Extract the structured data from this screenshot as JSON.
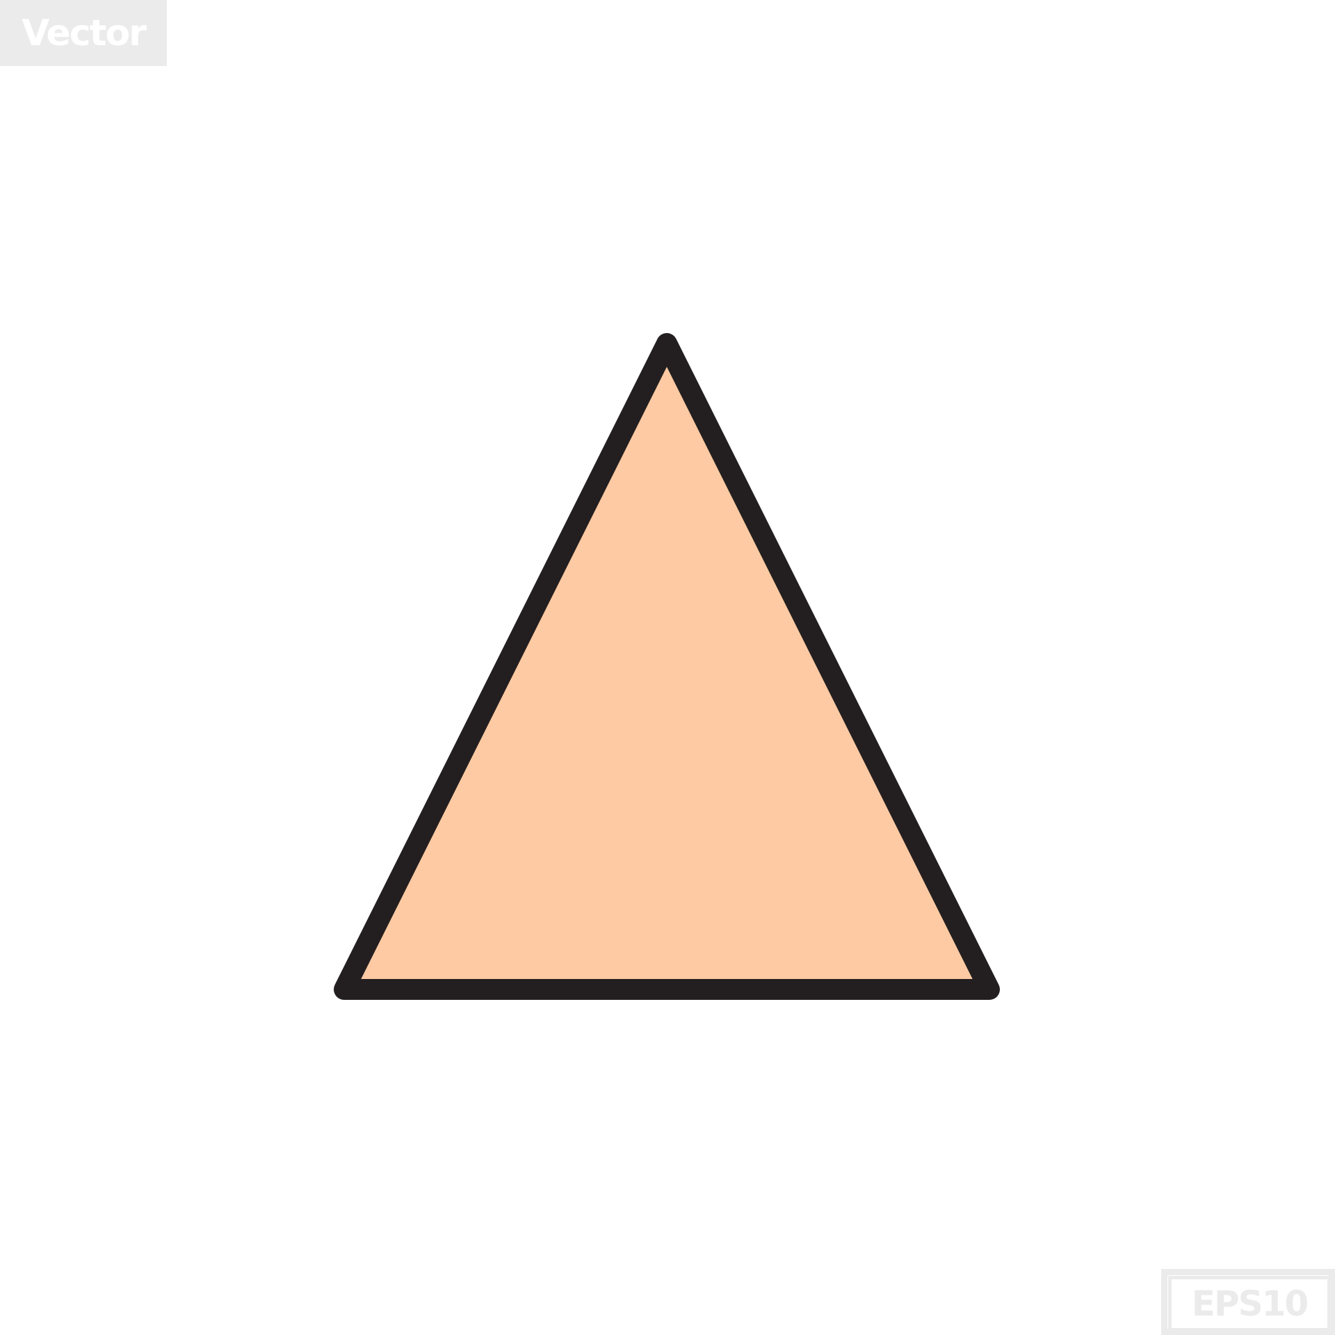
{
  "badges": {
    "top_label": "Vector",
    "bottom_label": "EPS10"
  },
  "icon": {
    "name": "triangle-icon",
    "fill_color": "#fdcaa3",
    "stroke_color": "#231f20"
  },
  "colors": {
    "background": "#ffffff",
    "badge_background": "#ebebeb",
    "badge_text": "#ffffff",
    "eps_text": "#ebebeb"
  }
}
